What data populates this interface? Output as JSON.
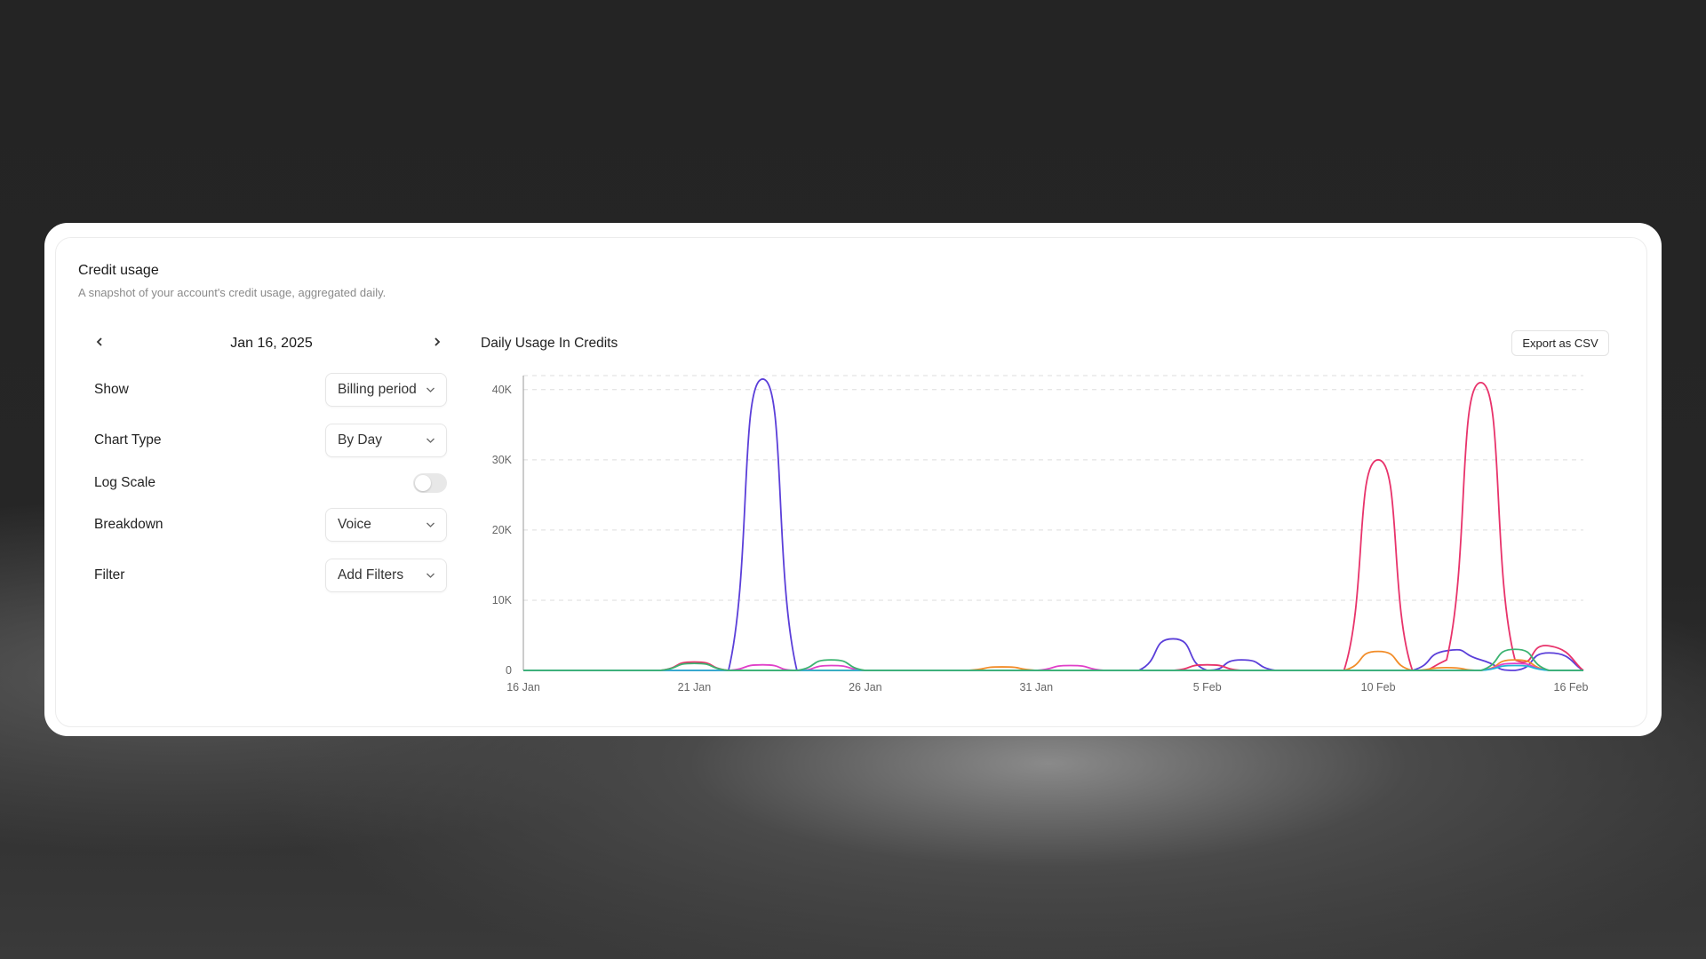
{
  "header": {
    "title": "Credit usage",
    "subtitle": "A snapshot of your account's credit usage, aggregated daily."
  },
  "date_nav": {
    "prev_icon": "chevron-left-icon",
    "next_icon": "chevron-right-icon",
    "date": "Jan 16, 2025"
  },
  "controls": {
    "show": {
      "label": "Show",
      "value": "Billing period"
    },
    "chart_type": {
      "label": "Chart Type",
      "value": "By Day"
    },
    "log_scale": {
      "label": "Log Scale",
      "enabled": false
    },
    "breakdown": {
      "label": "Breakdown",
      "value": "Voice"
    },
    "filter": {
      "label": "Filter",
      "value": "Add Filters"
    }
  },
  "export_label": "Export as CSV",
  "chart_data": {
    "type": "line",
    "title": "Daily Usage In Credits",
    "xlabel": "",
    "ylabel": "",
    "x": [
      "16 Jan",
      "17 Jan",
      "18 Jan",
      "19 Jan",
      "20 Jan",
      "21 Jan",
      "22 Jan",
      "23 Jan",
      "24 Jan",
      "25 Jan",
      "26 Jan",
      "27 Jan",
      "28 Jan",
      "29 Jan",
      "30 Jan",
      "31 Jan",
      "1 Feb",
      "2 Feb",
      "3 Feb",
      "4 Feb",
      "5 Feb",
      "6 Feb",
      "7 Feb",
      "8 Feb",
      "9 Feb",
      "10 Feb",
      "11 Feb",
      "12 Feb",
      "13 Feb",
      "14 Feb",
      "15 Feb",
      "16 Feb"
    ],
    "x_ticks": [
      "16 Jan",
      "21 Jan",
      "26 Jan",
      "31 Jan",
      "5 Feb",
      "10 Feb",
      "16 Feb"
    ],
    "y_ticks": [
      "0",
      "10K",
      "20K",
      "30K",
      "40K"
    ],
    "ylim": [
      0,
      42000
    ],
    "grid": true,
    "smooth": true,
    "series": [
      {
        "color": "#5b3fd9",
        "values": [
          0,
          0,
          0,
          0,
          0,
          0,
          0,
          41500,
          0,
          0,
          0,
          0,
          0,
          0,
          0,
          0,
          0,
          0,
          0,
          4500,
          0,
          1500,
          0,
          0,
          0,
          0,
          0,
          2800,
          1500,
          0,
          2500,
          0
        ]
      },
      {
        "color": "#e8336b",
        "values": [
          0,
          0,
          0,
          0,
          0,
          1200,
          0,
          0,
          0,
          0,
          0,
          0,
          0,
          0,
          0,
          0,
          0,
          0,
          0,
          0,
          800,
          0,
          0,
          0,
          0,
          30000,
          0,
          1500,
          41000,
          1500,
          3500,
          0
        ]
      },
      {
        "color": "#f28c28",
        "values": [
          0,
          0,
          0,
          0,
          0,
          0,
          0,
          0,
          0,
          0,
          0,
          0,
          0,
          0,
          500,
          0,
          0,
          0,
          0,
          0,
          0,
          0,
          0,
          0,
          0,
          2700,
          0,
          400,
          0,
          1500,
          0,
          0
        ]
      },
      {
        "color": "#e040c8",
        "values": [
          0,
          0,
          0,
          0,
          0,
          0,
          0,
          800,
          0,
          700,
          0,
          0,
          0,
          0,
          0,
          0,
          700,
          0,
          0,
          0,
          0,
          0,
          0,
          0,
          0,
          0,
          0,
          0,
          0,
          1000,
          0,
          0
        ]
      },
      {
        "color": "#22b5d6",
        "values": [
          0,
          0,
          0,
          0,
          0,
          0,
          0,
          0,
          0,
          0,
          0,
          0,
          0,
          0,
          0,
          0,
          0,
          0,
          0,
          0,
          0,
          0,
          0,
          0,
          0,
          0,
          0,
          0,
          0,
          700,
          0,
          0
        ]
      },
      {
        "color": "#3cb371",
        "values": [
          0,
          0,
          0,
          0,
          0,
          1000,
          0,
          0,
          0,
          1500,
          0,
          0,
          0,
          0,
          0,
          0,
          0,
          0,
          0,
          0,
          0,
          0,
          0,
          0,
          0,
          0,
          0,
          0,
          0,
          3000,
          0,
          0
        ]
      }
    ]
  }
}
